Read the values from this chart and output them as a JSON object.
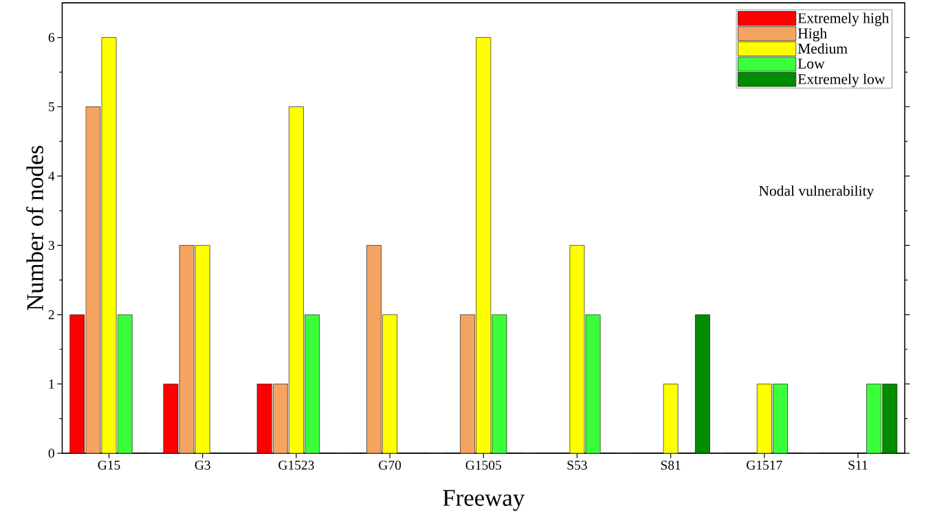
{
  "chart_data": {
    "type": "bar",
    "xlabel": "Freeway",
    "ylabel": "Number of nodes",
    "legend_title": "Nodal vulnerability",
    "categories": [
      "G15",
      "G3",
      "G1523",
      "G70",
      "G1505",
      "S53",
      "S81",
      "G1517",
      "S11"
    ],
    "series": [
      {
        "name": "Extremely high",
        "color": "#ff0000",
        "values": [
          2,
          1,
          1,
          0,
          0,
          0,
          0,
          0,
          0
        ]
      },
      {
        "name": "High",
        "color": "#f4a460",
        "values": [
          5,
          3,
          1,
          3,
          2,
          0,
          0,
          0,
          0
        ]
      },
      {
        "name": "Medium",
        "color": "#ffff00",
        "values": [
          6,
          3,
          5,
          2,
          6,
          3,
          1,
          1,
          0
        ]
      },
      {
        "name": "Low",
        "color": "#3cff3c",
        "values": [
          2,
          0,
          2,
          0,
          2,
          2,
          0,
          1,
          1
        ]
      },
      {
        "name": "Extremely low",
        "color": "#008c00",
        "values": [
          0,
          0,
          0,
          0,
          0,
          0,
          2,
          0,
          1
        ]
      }
    ],
    "ylim": [
      0,
      6.5
    ],
    "yticks": [
      0,
      1,
      2,
      3,
      4,
      5,
      6
    ],
    "grid": false,
    "legend": "top right"
  }
}
